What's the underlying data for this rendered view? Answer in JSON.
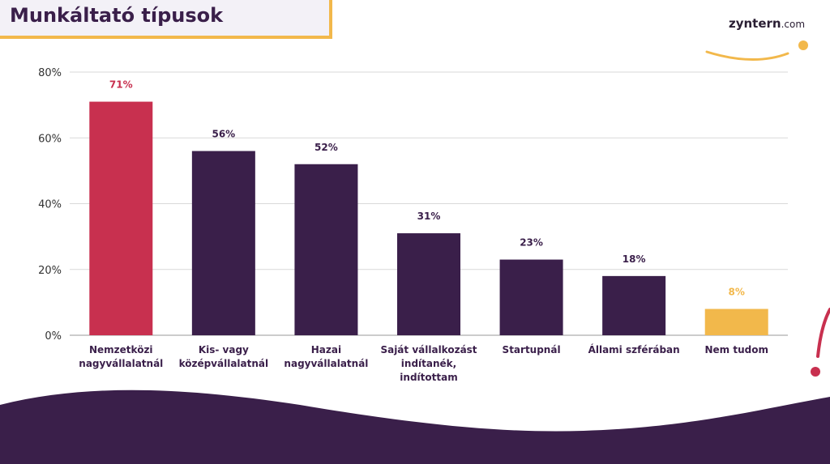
{
  "header": {
    "title": "Munkáltató típusok",
    "logo_text": "zyntern",
    "logo_domain": ".com"
  },
  "colors": {
    "primary": "#3a1f4a",
    "highlight": "#c8304f",
    "accent": "#f2b84b",
    "grid": "#d9d9d9",
    "axis_text": "#333333"
  },
  "chart_data": {
    "type": "bar",
    "title": "Munkáltató típusok",
    "xlabel": "",
    "ylabel": "",
    "ylim": [
      0,
      80
    ],
    "yticks": [
      0,
      20,
      40,
      60,
      80
    ],
    "ytick_labels": [
      "0%",
      "20%",
      "40%",
      "60%",
      "80%"
    ],
    "grid": true,
    "categories": [
      [
        "Nemzetközi",
        "nagyvállalatnál"
      ],
      [
        "Kis- vagy",
        "középvállalatnál"
      ],
      [
        "Hazai",
        "nagyvállalatnál"
      ],
      [
        "Saját vállalkozást",
        "indítanék,",
        "indítottam"
      ],
      [
        "Startupnál"
      ],
      [
        "Állami szférában"
      ],
      [
        "Nem tudom"
      ]
    ],
    "values": [
      71,
      56,
      52,
      31,
      23,
      18,
      8
    ],
    "data_labels": [
      "71%",
      "56%",
      "52%",
      "31%",
      "23%",
      "18%",
      "8%"
    ],
    "bar_colors": [
      "#c8304f",
      "#3a1f4a",
      "#3a1f4a",
      "#3a1f4a",
      "#3a1f4a",
      "#3a1f4a",
      "#f2b84b"
    ]
  }
}
